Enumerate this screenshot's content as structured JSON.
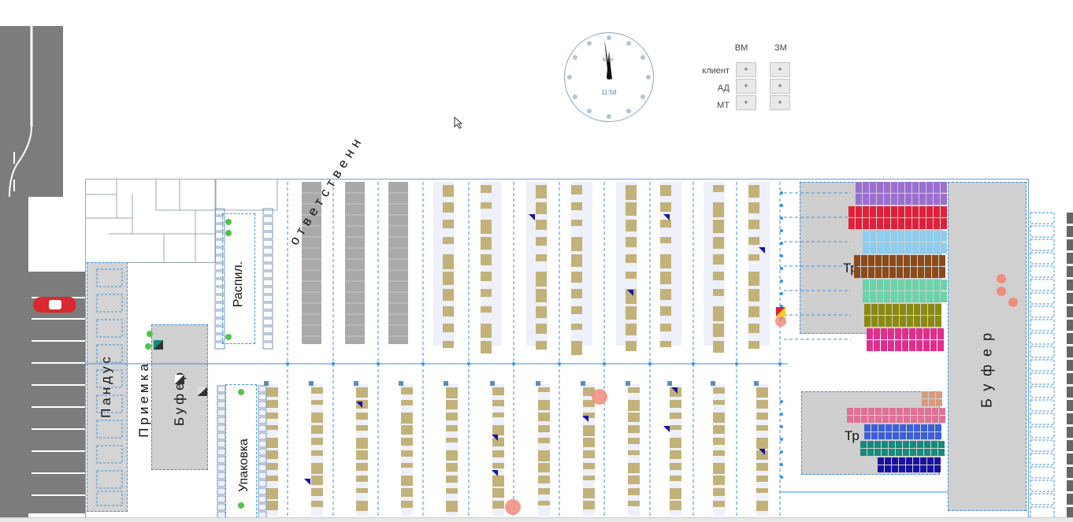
{
  "clock": {
    "time": "11:58",
    "label": "Mon"
  },
  "controls": {
    "columns": [
      "ВМ",
      "ЗМ"
    ],
    "rows": [
      {
        "label": "клиент",
        "buttons": [
          "+",
          "+"
        ]
      },
      {
        "label": "АД",
        "buttons": [
          "+",
          "+"
        ]
      },
      {
        "label": "МТ",
        "buttons": [
          "+",
          "+"
        ]
      }
    ]
  },
  "zones": {
    "pandus": "Пандус",
    "priemka": "Приемка",
    "buffer_left": "Буфер",
    "raspil": "Распил.",
    "upakovka": "Упаковка",
    "otvetstvennoe": "ответственн",
    "tr_top": "Тр",
    "tr_bottom": "Тр",
    "buffer_right": "Буфер"
  },
  "colors": {
    "road": "#7c7c7c",
    "rack_wood": "#c2b27a",
    "rack_gray": "#a9a9a9",
    "route_blue": "#3d8fe0",
    "car_red": "#d9282f",
    "tr_top_rows": [
      "#9b6fd0",
      "#e0203a",
      "#8ccdf0",
      "#8b4a1a",
      "#6bd3a8",
      "#8a8a12",
      "#e02e8c"
    ],
    "tr_bottom_rows": [
      "#d99a7a",
      "#e07095",
      "#3d5fd6",
      "#178a7c",
      "#1a12a0"
    ],
    "side_swatches": [
      "#d63a8a",
      "#e8a0c0",
      "#e0203a",
      "#8ccdf0",
      "#8a8a12",
      "#178a7c",
      "#1a12a0",
      "#8b4a1a"
    ]
  }
}
